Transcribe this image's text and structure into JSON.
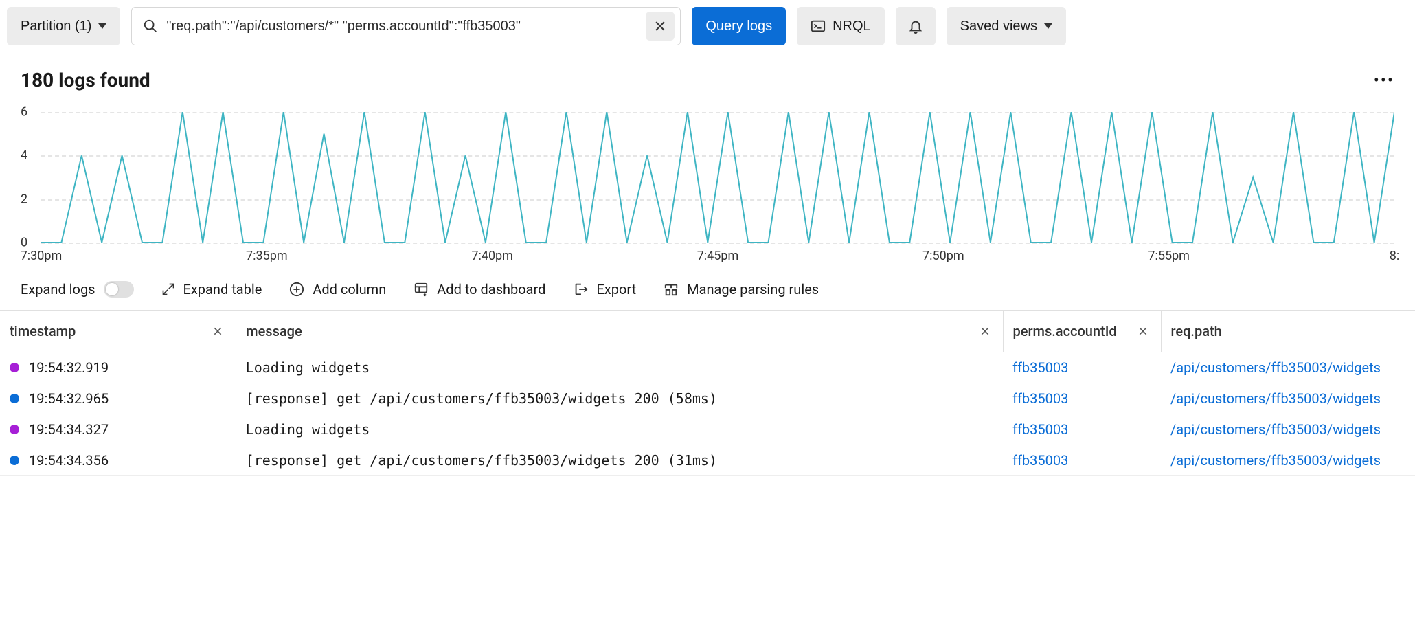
{
  "toolbar": {
    "partition_label": "Partition (1)",
    "search_value": "\"req.path\":\"/api/customers/*\" \"perms.accountId\":\"ffb35003\"",
    "query_btn": "Query logs",
    "nrql_btn": "NRQL",
    "saved_views_btn": "Saved views"
  },
  "results": {
    "count_label": "180 logs found"
  },
  "chart": {
    "type": "line",
    "line_color": "#3fb5c3",
    "grid_color": "#e5e5e5",
    "background_color": "#ffffff",
    "ylim": [
      0,
      6
    ],
    "yticks": [
      0,
      2,
      4,
      6
    ],
    "xticks": [
      "7:30pm",
      "7:35pm",
      "7:40pm",
      "7:45pm",
      "7:50pm",
      "7:55pm",
      "8:"
    ],
    "values": [
      0,
      0,
      4,
      0,
      4,
      0,
      0,
      6,
      0,
      6,
      0,
      0,
      6,
      0,
      5,
      0,
      6,
      0,
      0,
      6,
      0,
      4,
      0,
      6,
      0,
      0,
      6,
      0,
      6,
      0,
      4,
      0,
      6,
      0,
      6,
      0,
      0,
      6,
      0,
      6,
      0,
      6,
      0,
      0,
      6,
      0,
      6,
      0,
      6,
      0,
      0,
      6,
      0,
      6,
      0,
      6,
      0,
      0,
      6,
      0,
      3,
      0,
      6,
      0,
      0,
      6,
      0,
      6
    ]
  },
  "table_toolbar": {
    "expand_logs": "Expand logs",
    "expand_table": "Expand table",
    "add_column": "Add column",
    "add_dashboard": "Add to dashboard",
    "export": "Export",
    "parsing_rules": "Manage parsing rules"
  },
  "columns": {
    "timestamp": "timestamp",
    "message": "message",
    "accountId": "perms.accountId",
    "reqpath": "req.path"
  },
  "link_color": "#0b6dd6",
  "dot_colors": {
    "purple": "#a61fd6",
    "blue": "#0b6dd6"
  },
  "rows": [
    {
      "dot": "purple",
      "ts": "19:54:32.919",
      "msg": "Loading widgets",
      "acct": "ffb35003",
      "path": "/api/customers/ffb35003/widgets"
    },
    {
      "dot": "blue",
      "ts": "19:54:32.965",
      "msg": "[response] get /api/customers/ffb35003/widgets 200 (58ms)",
      "acct": "ffb35003",
      "path": "/api/customers/ffb35003/widgets"
    },
    {
      "dot": "purple",
      "ts": "19:54:34.327",
      "msg": "Loading widgets",
      "acct": "ffb35003",
      "path": "/api/customers/ffb35003/widgets"
    },
    {
      "dot": "blue",
      "ts": "19:54:34.356",
      "msg": "[response] get /api/customers/ffb35003/widgets 200 (31ms)",
      "acct": "ffb35003",
      "path": "/api/customers/ffb35003/widgets"
    }
  ]
}
